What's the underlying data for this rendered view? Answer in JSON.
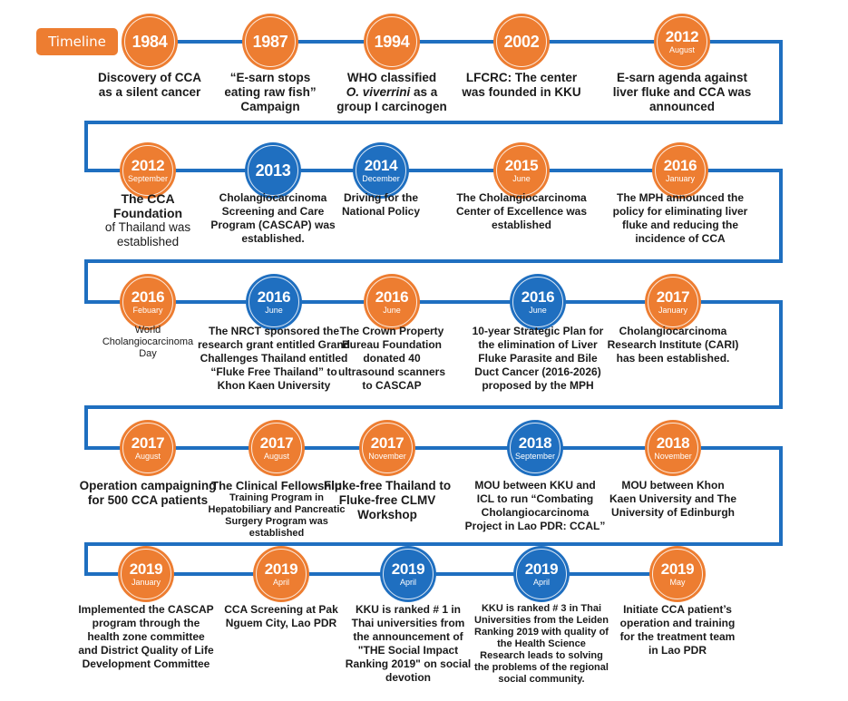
{
  "header": {
    "title": "Timeline"
  },
  "colors": {
    "orange": "#ED7D31",
    "blue": "#1F6FC0",
    "path": "#1F6FC0"
  },
  "rows": [
    {
      "events": [
        {
          "year": "1984",
          "month": "",
          "color": "orange",
          "size": "big",
          "lines": [
            "Discovery of CCA",
            "as a silent cancer"
          ]
        },
        {
          "year": "1987",
          "month": "",
          "color": "orange",
          "size": "big",
          "lines": [
            "“E-sarn stops",
            "eating raw fish”",
            "Campaign"
          ]
        },
        {
          "year": "1994",
          "month": "",
          "color": "orange",
          "size": "big",
          "lines": [
            "WHO classified",
            "O. viverrini as a",
            "group I carcinogen"
          ]
        },
        {
          "year": "2002",
          "month": "",
          "color": "orange",
          "size": "big",
          "lines": [
            "LFCRC: The center",
            "was founded in KKU"
          ]
        },
        {
          "year": "2012",
          "month": "August",
          "color": "orange",
          "size": "big",
          "lines": [
            "E-sarn agenda against",
            "liver fluke and CCA was",
            "announced"
          ]
        }
      ]
    },
    {
      "events": [
        {
          "year": "2012",
          "month": "September",
          "color": "orange",
          "size": "big",
          "lines": [
            "The CCA",
            "Foundation",
            "of Thailand was",
            "established"
          ]
        },
        {
          "year": "2013",
          "month": "",
          "color": "blue",
          "size": "normal",
          "lines": [
            "Cholangiocarcinoma",
            "Screening and Care",
            "Program (CASCAP) was",
            "established."
          ]
        },
        {
          "year": "2014",
          "month": "December",
          "color": "blue",
          "size": "normal",
          "lines": [
            "Driving for the",
            "National Policy"
          ]
        },
        {
          "year": "2015",
          "month": "June",
          "color": "orange",
          "size": "normal",
          "lines": [
            "The Cholangiocarcinoma",
            "Center of Excellence was",
            "established"
          ]
        },
        {
          "year": "2016",
          "month": "January",
          "color": "orange",
          "size": "normal",
          "lines": [
            "The MPH announced the",
            "policy for eliminating liver",
            "fluke and reducing the",
            "incidence of CCA"
          ]
        }
      ]
    },
    {
      "events": [
        {
          "year": "2016",
          "month": "Febuary",
          "color": "orange",
          "size": "small",
          "lines": [
            "World",
            "Cholangiocarcinoma",
            "Day"
          ]
        },
        {
          "year": "2016",
          "month": "June",
          "color": "blue",
          "size": "normal",
          "lines": [
            "The NRCT sponsored the",
            "research grant entitled Grand",
            "Challenges Thailand entitled",
            "“Fluke Free Thailand” to",
            "Khon Kaen University"
          ]
        },
        {
          "year": "2016",
          "month": "June",
          "color": "orange",
          "size": "normal",
          "lines": [
            "The Crown Property",
            "Bureau Foundation",
            "donated 40",
            "ultrasound scanners",
            "to CASCAP"
          ]
        },
        {
          "year": "2016",
          "month": "June",
          "color": "blue",
          "size": "normal",
          "lines": [
            "10-year Strategic Plan for",
            "the elimination of Liver",
            "Fluke Parasite and Bile",
            "Duct Cancer (2016-2026)",
            "proposed by the MPH"
          ]
        },
        {
          "year": "2017",
          "month": "January",
          "color": "orange",
          "size": "normal",
          "lines": [
            "Cholangiocarcinoma",
            "Research Institute (CARI)",
            "has been established."
          ]
        }
      ]
    },
    {
      "events": [
        {
          "year": "2017",
          "month": "August",
          "color": "orange",
          "size": "big",
          "lines": [
            "Operation campaigning",
            "for 500 CCA patients"
          ]
        },
        {
          "year": "2017",
          "month": "August",
          "color": "orange",
          "size": "mixed",
          "lines": [
            "The Clinical Fellowship",
            "Training Program in",
            "Hepatobiliary and Pancreatic",
            "Surgery Program was",
            "established"
          ]
        },
        {
          "year": "2017",
          "month": "November",
          "color": "orange",
          "size": "big",
          "lines": [
            "Fluke-free Thailand to",
            "Fluke-free CLMV",
            "Workshop"
          ]
        },
        {
          "year": "2018",
          "month": "September",
          "color": "blue",
          "size": "normal",
          "lines": [
            "MOU between KKU and",
            "ICL to run “Combating",
            "Cholangiocarcinoma",
            "Project in Lao PDR: CCAL”"
          ]
        },
        {
          "year": "2018",
          "month": "November",
          "color": "orange",
          "size": "normal",
          "lines": [
            "MOU between Khon",
            "Kaen University and The",
            "University of Edinburgh"
          ]
        }
      ]
    },
    {
      "events": [
        {
          "year": "2019",
          "month": "January",
          "color": "orange",
          "size": "normal",
          "lines": [
            "Implemented the CASCAP",
            "program through the",
            "health zone committee",
            "and District Quality of Life",
            "Development Committee"
          ]
        },
        {
          "year": "2019",
          "month": "April",
          "color": "orange",
          "size": "normal",
          "lines": [
            "CCA Screening at Pak",
            "Nguem City, Lao PDR"
          ]
        },
        {
          "year": "2019",
          "month": "April",
          "color": "blue",
          "size": "normal",
          "lines": [
            "KKU is ranked # 1 in",
            "Thai universities from",
            "the announcement of",
            "\"THE Social Impact",
            "Ranking 2019\" on social",
            "devotion"
          ]
        },
        {
          "year": "2019",
          "month": "April",
          "color": "blue",
          "size": "small",
          "lines": [
            "KKU is ranked # 3 in Thai",
            "Universities from the Leiden",
            "Ranking 2019 with quality of",
            "the Health Science",
            "Research  leads to solving",
            "the problems of the regional",
            "social community."
          ]
        },
        {
          "year": "2019",
          "month": "May",
          "color": "orange",
          "size": "normal",
          "lines": [
            "Initiate CCA patient’s",
            "operation and training",
            "for the treatment team",
            "in Lao PDR"
          ]
        }
      ]
    }
  ]
}
